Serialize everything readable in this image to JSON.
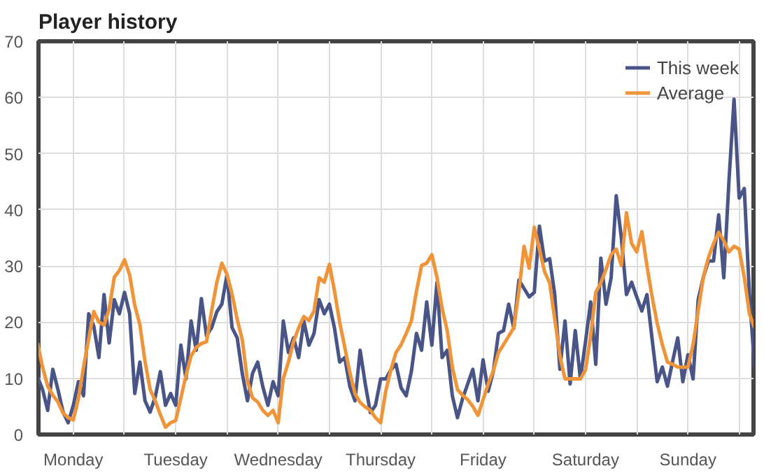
{
  "chart_data": {
    "type": "line",
    "title": "Player history",
    "categories": [
      null,
      null,
      null,
      null,
      null,
      null,
      null,
      "Monday",
      null,
      null,
      null,
      null,
      null,
      null,
      null,
      null,
      null,
      null,
      null,
      null,
      null,
      null,
      null,
      null,
      null,
      null,
      null,
      "Tuesday",
      null,
      null,
      null,
      null,
      null,
      null,
      null,
      null,
      null,
      null,
      null,
      null,
      null,
      null,
      null,
      null,
      null,
      null,
      null,
      "Wednesday",
      null,
      null,
      null,
      null,
      null,
      null,
      null,
      null,
      null,
      null,
      null,
      null,
      null,
      null,
      null,
      null,
      null,
      null,
      null,
      "Thursday",
      null,
      null,
      null,
      null,
      null,
      null,
      null,
      null,
      null,
      null,
      null,
      null,
      null,
      null,
      null,
      null,
      null,
      null,
      null,
      "Friday",
      null,
      null,
      null,
      null,
      null,
      null,
      null,
      null,
      null,
      null,
      null,
      null,
      null,
      null,
      null,
      null,
      null,
      null,
      null,
      "Saturday",
      null,
      null,
      null,
      null,
      null,
      null,
      null,
      null,
      null,
      null,
      null,
      null,
      null,
      null,
      null,
      null,
      null,
      null,
      null,
      "Sunday",
      null,
      null,
      null,
      null,
      null,
      null,
      null,
      null,
      null,
      null,
      null,
      null,
      null
    ],
    "ylim": [
      0,
      70
    ],
    "yticks": [
      0,
      10,
      20,
      30,
      40,
      50,
      60,
      70
    ],
    "grid": true,
    "legend": "top right",
    "marker": "none",
    "line_style": "solid",
    "series": [
      {
        "name": "This week",
        "color": "#4a5587",
        "values": [
          10.3,
          8,
          4.3,
          11.6,
          8,
          4,
          2.1,
          5.2,
          9.4,
          6.9,
          21.5,
          19.3,
          13.7,
          24.9,
          16.3,
          24,
          21.5,
          25.3,
          21.5,
          7.3,
          12.9,
          6,
          4,
          6.7,
          11.2,
          5.2,
          7.3,
          5.2,
          15.9,
          9.9,
          20.2,
          15,
          24.2,
          17.6,
          19,
          21.8,
          23.2,
          28.4,
          19,
          17.2,
          10.8,
          6,
          10.9,
          12.9,
          8.5,
          5.2,
          9.4,
          6.9,
          20.2,
          14.6,
          17.2,
          13.7,
          20.2,
          15.9,
          18,
          24,
          21.5,
          23.2,
          18.9,
          12.9,
          13.7,
          8.5,
          6,
          15,
          9,
          3.9,
          5.2,
          9.9,
          9.9,
          11.5,
          12.5,
          8.3,
          6.9,
          11.2,
          18,
          15,
          23.6,
          15.9,
          27.1,
          13.7,
          15,
          6.9,
          3,
          6.4,
          9,
          11.6,
          6,
          13.3,
          7.7,
          11.2,
          18,
          18.5,
          23.2,
          18.9,
          27.5,
          26,
          24.5,
          25.3,
          37.1,
          30.9,
          31.3,
          24.9,
          11.6,
          20.2,
          9,
          18.5,
          9.9,
          16.5,
          23.6,
          12.5,
          31.4,
          23.2,
          27.9,
          42.5,
          35,
          24.9,
          27.1,
          24.5,
          22,
          24.9,
          17,
          9.4,
          12,
          8.6,
          13,
          17.2,
          9.4,
          14.2,
          9.9,
          24,
          28,
          30.9,
          30.9,
          39.1,
          27.9,
          45,
          59.7,
          42.1,
          43.8,
          25,
          12
        ]
      },
      {
        "name": "Average",
        "color": "#f0943a",
        "values": [
          16.3,
          12,
          8.6,
          7,
          5.8,
          3.8,
          3,
          2.6,
          6.4,
          12,
          17,
          21.9,
          20,
          19.5,
          22.3,
          28,
          29.2,
          31.1,
          28.4,
          23,
          19.5,
          13,
          8,
          6,
          3.5,
          1.3,
          2.1,
          2.5,
          6.5,
          10.5,
          14,
          15.5,
          16.2,
          16.5,
          22,
          27,
          30.5,
          28.5,
          25,
          20.5,
          16.8,
          9.5,
          6.5,
          5.8,
          4.3,
          3.4,
          4.3,
          2.1,
          10,
          12.9,
          16.5,
          19,
          21,
          20.3,
          22,
          27.9,
          27.1,
          30.3,
          25.5,
          20,
          15.5,
          11,
          7.3,
          5.7,
          4.9,
          4.3,
          3,
          2.1,
          7.7,
          11.5,
          14.6,
          16,
          18,
          20.2,
          25.5,
          30.1,
          30.5,
          32,
          28,
          22.5,
          18.5,
          12,
          8,
          7,
          6.2,
          5,
          3.4,
          6.2,
          9,
          11.3,
          14.6,
          16,
          17.5,
          19,
          25.5,
          33.5,
          29.6,
          36.9,
          33,
          29,
          27,
          20.5,
          14,
          9.9,
          9.9,
          9.9,
          9.9,
          11.5,
          17.5,
          25.3,
          27,
          29.4,
          32,
          33,
          30.1,
          39.5,
          34,
          32.5,
          36.1,
          30,
          24.5,
          19.8,
          16,
          12.9,
          12.5,
          12,
          12,
          12,
          16,
          22,
          28,
          31.5,
          34,
          36,
          34.5,
          32.5,
          33.5,
          33,
          28,
          21.5,
          19
        ]
      }
    ]
  }
}
